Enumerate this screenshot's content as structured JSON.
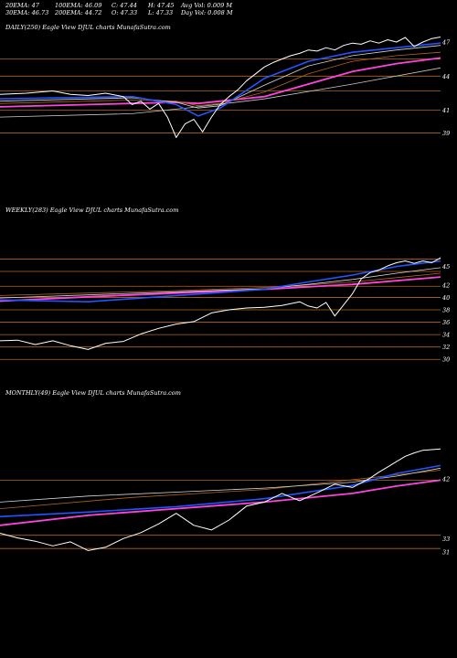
{
  "header": {
    "ema20": "20EMA: 47",
    "ema100": "100EMA: 46.09",
    "close": "C: 47.44",
    "high": "H: 47.45",
    "avg_vol": "Avg Vol: 0.009  M",
    "ema30": "30EMA: 46.73",
    "ema200": "200EMA: 44.72",
    "open": "O: 47.33",
    "low": "L: 47.33",
    "day_vol": "Day Vol: 0.008  M"
  },
  "colors": {
    "background": "#000000",
    "price": "#ffffff",
    "ema_fast": "#2255ff",
    "ema_slow": "#ff44dd",
    "levels": "#b5651d"
  },
  "chart_data": [
    {
      "type": "line",
      "title": "DAILY(250) Eagle   View  DJUL  charts MunafaSutra.com",
      "ylim": [
        38,
        47.8
      ],
      "yticks": [
        47,
        44,
        41,
        39
      ],
      "levels": [
        45.5,
        44,
        42.7,
        41,
        39
      ],
      "series": [
        {
          "x": [
            0,
            6,
            12,
            16,
            20,
            24,
            28,
            30,
            32,
            34,
            36,
            38,
            40,
            42,
            44,
            46,
            48,
            50,
            52,
            54,
            56,
            58,
            60,
            62,
            64,
            66,
            68,
            70,
            72,
            74,
            76,
            78,
            80,
            82,
            84,
            86,
            88,
            90,
            92,
            94,
            96,
            98,
            100
          ],
          "values": [
            42.4,
            42.5,
            42.7,
            42.4,
            42.3,
            42.5,
            42.2,
            41.5,
            41.8,
            41.1,
            41.6,
            40.4,
            38.6,
            39.8,
            40.2,
            39.1,
            40.4,
            41.5,
            42.2,
            42.8,
            43.6,
            44.2,
            44.8,
            45.2,
            45.5,
            45.8,
            46.0,
            46.3,
            46.2,
            46.5,
            46.3,
            46.7,
            46.9,
            46.8,
            47.1,
            46.9,
            47.2,
            47.0,
            47.4,
            46.6,
            47.0,
            47.3,
            47.44
          ]
        },
        {
          "x": [
            0,
            30,
            40,
            45,
            50,
            60,
            70,
            80,
            90,
            100
          ],
          "values": [
            42.0,
            42.2,
            41.5,
            40.5,
            41.2,
            43.8,
            45.3,
            46.1,
            46.5,
            46.9
          ]
        },
        {
          "x": [
            0,
            30,
            40,
            45,
            50,
            60,
            70,
            80,
            90,
            100
          ],
          "values": [
            41.8,
            42.1,
            41.7,
            41.2,
            41.4,
            43.2,
            44.9,
            45.8,
            46.3,
            46.7
          ]
        },
        {
          "x": [
            0,
            30,
            40,
            45,
            50,
            60,
            70,
            80,
            90,
            100
          ],
          "values": [
            41.6,
            41.9,
            41.8,
            41.4,
            41.6,
            42.6,
            44.2,
            45.3,
            45.8,
            46.1
          ]
        },
        {
          "x": [
            0,
            30,
            40,
            45,
            50,
            60,
            70,
            80,
            90,
            100
          ],
          "values": [
            41.3,
            41.6,
            41.7,
            41.6,
            41.8,
            42.2,
            43.3,
            44.4,
            45.1,
            45.6
          ]
        },
        {
          "x": [
            0,
            30,
            45,
            60,
            80,
            100
          ],
          "values": [
            40.4,
            40.7,
            41.3,
            42.0,
            43.3,
            44.72
          ]
        }
      ]
    },
    {
      "type": "line",
      "title": "WEEKLY(283) Eagle   View  DJUL  charts MunafaSutra.com",
      "ylim": [
        29,
        47
      ],
      "yticks": [
        45,
        42,
        40,
        38,
        36,
        34,
        32,
        30
      ],
      "levels": [
        46.2,
        44.2,
        41.8,
        40,
        38,
        36,
        34,
        32,
        30
      ],
      "series": [
        {
          "x": [
            0,
            4,
            8,
            12,
            16,
            20,
            24,
            28,
            32,
            36,
            40,
            44,
            48,
            52,
            56,
            60,
            64,
            68,
            70,
            72,
            74,
            76,
            78,
            80,
            82,
            84,
            86,
            88,
            90,
            92,
            94,
            96,
            98,
            100
          ],
          "values": [
            33.0,
            33.1,
            32.4,
            33.0,
            32.2,
            31.6,
            32.6,
            32.9,
            34.1,
            35.0,
            35.7,
            36.1,
            37.5,
            38.0,
            38.3,
            38.4,
            38.7,
            39.3,
            38.6,
            38.3,
            39.2,
            37.0,
            38.8,
            40.6,
            43.0,
            44.0,
            44.4,
            45.1,
            45.6,
            45.9,
            45.5,
            45.9,
            45.6,
            46.4
          ]
        },
        {
          "x": [
            0,
            20,
            40,
            60,
            70,
            80,
            90,
            100
          ],
          "values": [
            39.6,
            39.3,
            40.3,
            41.3,
            42.5,
            43.6,
            45.0,
            45.9
          ]
        },
        {
          "x": [
            0,
            20,
            40,
            60,
            70,
            80,
            90,
            100
          ],
          "values": [
            39.9,
            40.4,
            40.9,
            41.4,
            42.1,
            42.9,
            43.9,
            44.8
          ]
        },
        {
          "x": [
            0,
            20,
            40,
            60,
            70,
            80,
            90,
            100
          ],
          "values": [
            40.3,
            40.7,
            41.1,
            41.6,
            42.0,
            42.5,
            43.2,
            43.9
          ]
        },
        {
          "x": [
            0,
            20,
            40,
            60,
            80,
            100
          ],
          "values": [
            39.4,
            40.1,
            40.7,
            41.3,
            42.1,
            43.3
          ]
        }
      ]
    },
    {
      "type": "line",
      "title": "MONTHLY(49) Eagle   View  DJUL  charts MunafaSutra.com",
      "ylim": [
        29.6,
        47.5
      ],
      "yticks": [
        42,
        33,
        31
      ],
      "levels": [
        41.8,
        33.5,
        31.5
      ],
      "series": [
        {
          "x": [
            0,
            4,
            8,
            12,
            16,
            20,
            24,
            28,
            32,
            36,
            40,
            44,
            48,
            52,
            56,
            60,
            64,
            68,
            72,
            76,
            80,
            84,
            86,
            88,
            90,
            92,
            94,
            96,
            98,
            100
          ],
          "values": [
            33.8,
            33.1,
            32.6,
            31.9,
            32.5,
            31.2,
            31.7,
            33.0,
            33.9,
            35.2,
            36.8,
            35.0,
            34.3,
            35.8,
            37.9,
            38.5,
            39.8,
            38.7,
            39.9,
            41.2,
            40.7,
            42.1,
            43.0,
            43.8,
            44.6,
            45.4,
            45.9,
            46.3,
            46.4,
            46.5
          ]
        },
        {
          "x": [
            0,
            20,
            40,
            60,
            80,
            90,
            100
          ],
          "values": [
            36.3,
            37.0,
            37.8,
            39.0,
            41.0,
            42.8,
            44.0
          ]
        },
        {
          "x": [
            0,
            20,
            40,
            60,
            80,
            90,
            100
          ],
          "values": [
            38.5,
            39.4,
            40.0,
            40.6,
            41.5,
            42.4,
            43.6
          ]
        },
        {
          "x": [
            0,
            30,
            60,
            90,
            100
          ],
          "values": [
            37.5,
            39.2,
            40.4,
            42.6,
            43.3
          ]
        },
        {
          "x": [
            0,
            20,
            40,
            60,
            80,
            90,
            100
          ],
          "values": [
            35.0,
            36.5,
            37.5,
            38.5,
            39.8,
            40.9,
            41.8
          ]
        }
      ]
    }
  ]
}
